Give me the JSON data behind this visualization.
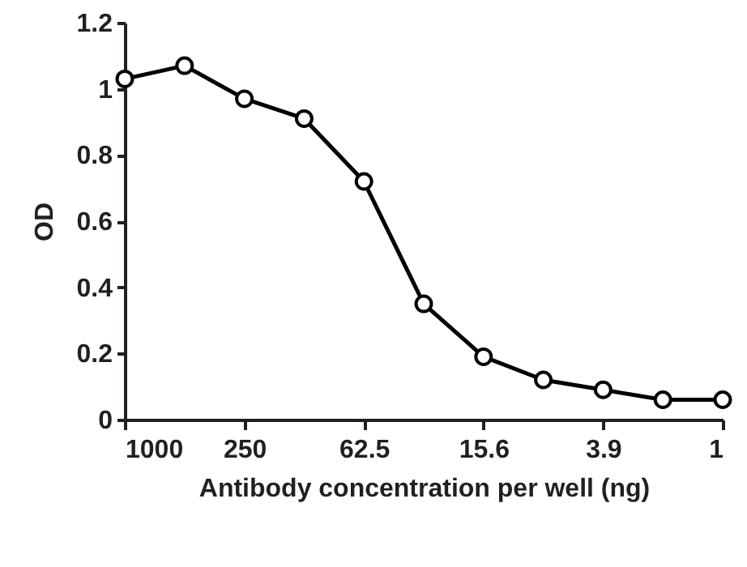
{
  "chart_data": {
    "type": "line",
    "xlabel": "Antibody concentration per well (ng)",
    "ylabel": "OD",
    "x": [
      1000,
      500,
      250,
      125,
      62.5,
      31.25,
      15.625,
      7.8125,
      3.90625,
      1.953125,
      0.9765625
    ],
    "series": [
      {
        "color": "#000000",
        "values": [
          1.03,
          1.07,
          0.97,
          0.91,
          0.72,
          0.35,
          0.19,
          0.12,
          0.09,
          0.06,
          0.06
        ]
      }
    ],
    "xlim": [
      1000,
      0.9765625
    ],
    "xticks": [
      1000,
      250,
      62.5,
      {
        "value": 15.625,
        "label": "15.6"
      },
      {
        "value": 3.90625,
        "label": "3.9"
      },
      {
        "value": 0.9765625,
        "label": "1"
      }
    ],
    "log": "x",
    "ylim": [
      0,
      1.2
    ],
    "yticks": [
      0,
      0.2,
      0.4,
      0.6,
      0.8,
      1,
      1.2
    ],
    "grid": false,
    "marker": "circle",
    "line_style": "solid"
  }
}
